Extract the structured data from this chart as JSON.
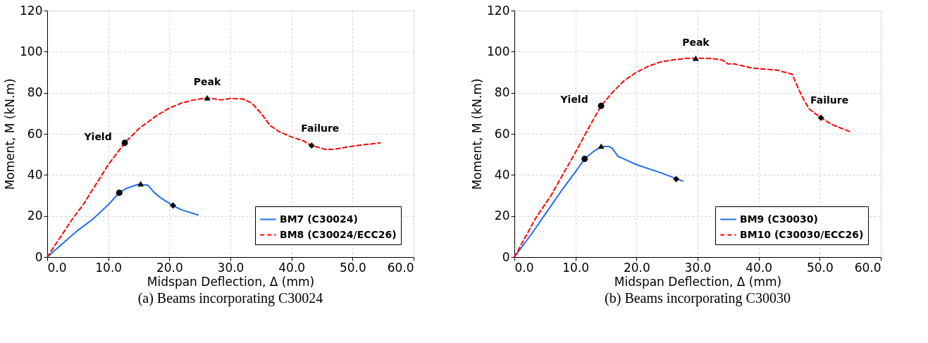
{
  "chart_data": [
    {
      "type": "line",
      "title": "(a)   Beams incorporating C30024",
      "xlabel": "Midspan Deflection, Δ (mm)",
      "ylabel": "Moment, M (kN.m)",
      "xlim": [
        0,
        60
      ],
      "ylim": [
        0,
        120
      ],
      "xticks": [
        {
          "value": 0,
          "label": "0.0"
        },
        {
          "value": 10,
          "label": "10.0"
        },
        {
          "value": 20,
          "label": "20.0"
        },
        {
          "value": 30,
          "label": "30.0"
        },
        {
          "value": 40,
          "label": "40.0"
        },
        {
          "value": 50,
          "label": "50.0"
        },
        {
          "value": 60,
          "label": "60.0"
        }
      ],
      "yticks": [
        0,
        20,
        40,
        60,
        80,
        100,
        120
      ],
      "grid": true,
      "legend": "bottom right",
      "series": [
        {
          "name": "BM7 (C30024)",
          "color": "#1f6fe8",
          "line_style": "solid",
          "marker": "none",
          "x": [
            0,
            5,
            7.5,
            10,
            11.8,
            13,
            15,
            16.5,
            17.5,
            18.5,
            20.6,
            22,
            24.7
          ],
          "values": [
            0,
            13,
            18.5,
            25.5,
            31.3,
            33.5,
            35.5,
            35,
            31.5,
            29,
            25,
            23,
            20.5
          ]
        },
        {
          "name": "BM8 (C30024/ECC26)",
          "color": "#ff0000",
          "line_style": "dashed",
          "marker": "none",
          "x": [
            0,
            4,
            6,
            8,
            10,
            12.7,
            15,
            18,
            20,
            22,
            24,
            26.2,
            28.5,
            30,
            32,
            33.5,
            35,
            36.5,
            38,
            40,
            42,
            43.3,
            45.5,
            47,
            50,
            54.5
          ],
          "values": [
            0,
            18,
            26,
            35.5,
            45,
            55.6,
            62.5,
            69,
            72.5,
            75,
            76.5,
            77.5,
            76.5,
            77.2,
            77,
            75,
            70,
            64,
            61,
            58.5,
            56.5,
            54.3,
            52.5,
            52.5,
            54,
            55.6
          ]
        },
        {
          "type": "scatter",
          "color": "#000000",
          "marker": "circle",
          "x": [
            11.8,
            12.7
          ],
          "values": [
            31.3,
            55.6
          ]
        },
        {
          "type": "scatter",
          "color": "#000000",
          "marker": "triangle",
          "x": [
            15.3,
            26.2
          ],
          "values": [
            35.7,
            77.5
          ]
        },
        {
          "type": "scatter",
          "color": "#000000",
          "marker": "diamond",
          "x": [
            20.6,
            43.3
          ],
          "values": [
            25.1,
            54.3
          ]
        }
      ],
      "annotations": [
        "Yield",
        "Peak",
        "Failure"
      ]
    },
    {
      "type": "line",
      "title": "(b)   Beams incorporating C30030",
      "xlabel": "Midspan Deflection, Δ (mm)",
      "ylabel": "Moment, M (kN.m)",
      "xlim": [
        0,
        60
      ],
      "ylim": [
        0,
        120
      ],
      "xticks": [
        {
          "value": 0,
          "label": "0.0"
        },
        {
          "value": 10,
          "label": "10.0"
        },
        {
          "value": 20,
          "label": "20.0"
        },
        {
          "value": 30,
          "label": "30.0"
        },
        {
          "value": 40,
          "label": "40.0"
        },
        {
          "value": 50,
          "label": "50.0"
        },
        {
          "value": 60,
          "label": "60.0"
        }
      ],
      "yticks": [
        0,
        20,
        40,
        60,
        80,
        100,
        120
      ],
      "grid": true,
      "legend": "bottom right",
      "series": [
        {
          "name": "BM9 (C30030)",
          "color": "#1f6fe8",
          "line_style": "solid",
          "marker": "none",
          "x": [
            0,
            3,
            6,
            8,
            10,
            11.5,
            13,
            14.2,
            15.5,
            16,
            17,
            18.5,
            20,
            22,
            24,
            26.5,
            27.6
          ],
          "values": [
            0,
            12,
            25,
            33.5,
            41.5,
            47.8,
            51.5,
            53.8,
            53.8,
            53,
            49,
            47,
            45,
            43,
            41,
            38.2,
            37
          ]
        },
        {
          "name": "BM10 (C30030/ECC26)",
          "color": "#ff0000",
          "line_style": "dashed",
          "marker": "none",
          "x": [
            0,
            3.5,
            6,
            8,
            10,
            12,
            14.2,
            16,
            18,
            20,
            22,
            24,
            26,
            28,
            29.7,
            32,
            34,
            35,
            36,
            39,
            43,
            45.5,
            46.5,
            47.5,
            48.3,
            50.2,
            52,
            55
          ],
          "values": [
            0,
            19,
            30,
            40.5,
            51,
            62,
            73.6,
            80,
            86,
            90,
            93,
            95,
            96,
            96.7,
            96.8,
            96.7,
            96,
            94,
            94,
            92,
            91,
            89,
            82,
            76,
            72,
            67.8,
            64.5,
            61
          ]
        },
        {
          "type": "scatter",
          "color": "#000000",
          "marker": "circle",
          "x": [
            11.5,
            14.2
          ],
          "values": [
            47.8,
            73.6
          ]
        },
        {
          "type": "scatter",
          "color": "#000000",
          "marker": "triangle",
          "x": [
            14.2,
            29.7
          ],
          "values": [
            54,
            96.8
          ]
        },
        {
          "type": "scatter",
          "color": "#000000",
          "marker": "diamond",
          "x": [
            26.5,
            50.2
          ],
          "values": [
            38,
            67.8
          ]
        }
      ],
      "annotations": [
        "Yield",
        "Peak",
        "Failure"
      ]
    }
  ]
}
